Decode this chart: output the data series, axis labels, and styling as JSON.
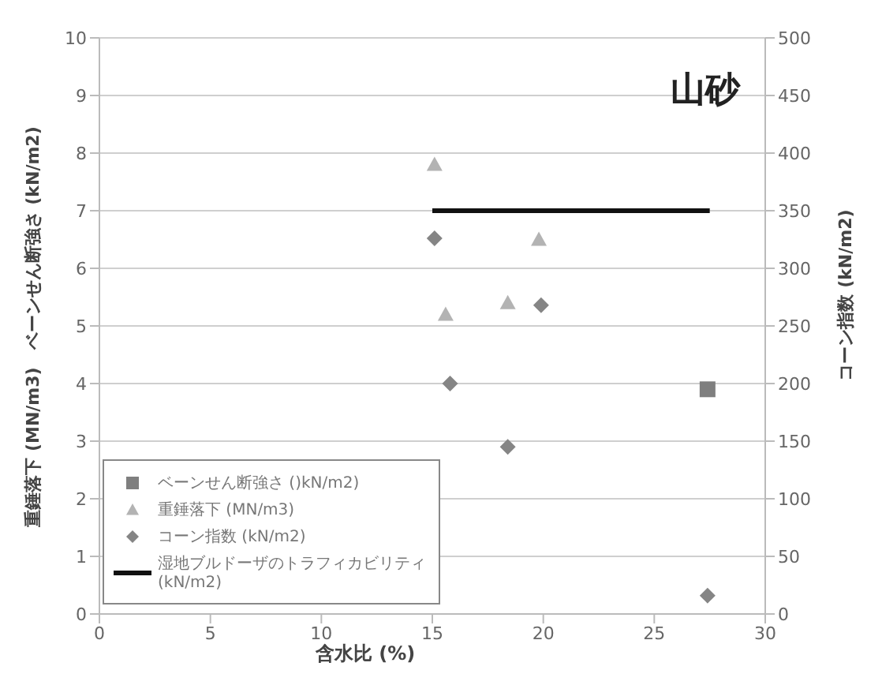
{
  "chart_data": {
    "type": "scatter",
    "title": "山砂",
    "xlabel": "含水比 (%)",
    "ylabel": "重錘落下 (MN/m3)　ベーンせん断強さ (kN/m2)",
    "y2label": "コーン指数 (kN/m2)",
    "xlim": [
      0,
      30
    ],
    "xticks": [
      0,
      5,
      10,
      15,
      20,
      25,
      30
    ],
    "ylim": [
      0,
      10
    ],
    "yticks": [
      0,
      1,
      2,
      3,
      4,
      5,
      6,
      7,
      8,
      9,
      10
    ],
    "y2lim": [
      0,
      500
    ],
    "y2ticks": [
      0,
      50,
      100,
      150,
      200,
      250,
      300,
      350,
      400,
      450,
      500
    ],
    "grid": "y",
    "legend": "bottom left",
    "series": [
      {
        "name": "ベーンせん断強さ ()kN/m2)",
        "marker": "square",
        "color": "#7f7f7f",
        "x": [
          27.4
        ],
        "values": [
          3.9
        ]
      },
      {
        "name": "重錘落下 (MN/m3)",
        "marker": "triangle",
        "color": "#b3b3b3",
        "x": [
          15.1,
          15.6,
          18.4,
          19.8
        ],
        "values": [
          7.8,
          5.2,
          5.4,
          6.5
        ]
      },
      {
        "name": "コーン指数 (kN/m2)",
        "marker": "diamond",
        "color": "#858585",
        "axis": "y2",
        "x": [
          15.1,
          15.8,
          18.4,
          19.9,
          27.4
        ],
        "values": [
          326,
          200,
          145,
          268,
          16
        ]
      },
      {
        "name": "湿地ブルドーザのトラフィカビリティ(kN/m2)",
        "type": "line",
        "marker": "none",
        "color": "#111111",
        "axis": "y2",
        "x": [
          15,
          27.5
        ],
        "values": [
          350,
          350
        ]
      }
    ]
  }
}
